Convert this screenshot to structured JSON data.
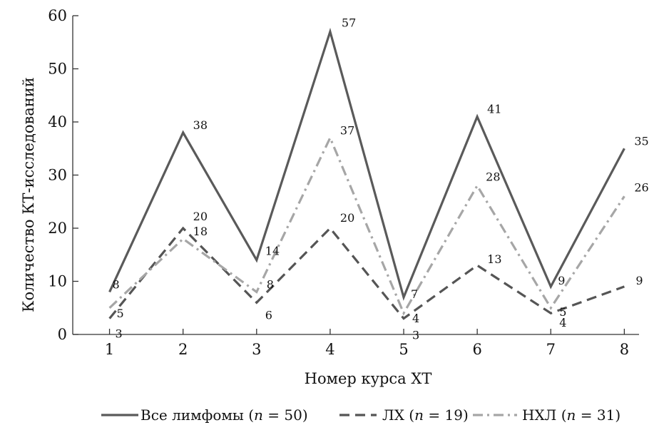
{
  "chart_data": {
    "type": "line",
    "title": "",
    "xlabel": "Номер курса ХТ",
    "ylabel": "Количество КТ-исследований",
    "x": [
      1,
      2,
      3,
      4,
      5,
      6,
      7,
      8
    ],
    "xlim": [
      0.5,
      8.2
    ],
    "ylim": [
      0,
      60
    ],
    "yticks": [
      0,
      10,
      20,
      30,
      40,
      50,
      60
    ],
    "grid": false,
    "legend_position": "bottom",
    "series": [
      {
        "name": "Все лимфомы (n = 50)",
        "legend": {
          "label": "Все лимфомы",
          "n_part": "n",
          "n_value": "= 50"
        },
        "values": [
          8,
          38,
          14,
          57,
          7,
          41,
          9,
          35
        ],
        "style": "solid",
        "color": "#5a5a5a"
      },
      {
        "name": "ЛХ (n = 19)",
        "legend": {
          "label": "ЛХ",
          "n_part": "n",
          "n_value": "= 19"
        },
        "values": [
          3,
          20,
          6,
          20,
          3,
          13,
          4,
          9
        ],
        "style": "dashed",
        "color": "#555555"
      },
      {
        "name": "НХЛ (n = 31)",
        "legend": {
          "label": "НХЛ",
          "n_part": "n",
          "n_value": "= 31"
        },
        "values": [
          5,
          18,
          8,
          37,
          4,
          28,
          5,
          26
        ],
        "style": "dashdot",
        "color": "#a6a6a6"
      }
    ]
  }
}
